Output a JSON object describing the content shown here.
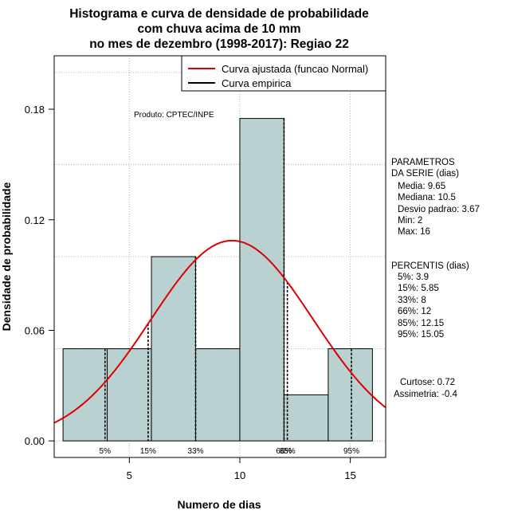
{
  "chart_data": {
    "type": "bar",
    "title_lines": [
      "Histograma e curva de densidade de probabilidade",
      "com chuva acima de 10 mm",
      "no mes de dezembro (1998-2017): Regiao 22"
    ],
    "xlabel": "Numero de dias",
    "ylabel": "Densidade de probabilidade",
    "xlim": [
      1.6,
      16.6
    ],
    "ylim": [
      -0.009,
      0.209
    ],
    "xticks": [
      5,
      10,
      15
    ],
    "yticks": [
      0.0,
      0.06,
      0.12,
      0.18
    ],
    "ytick_labels": [
      "0.00",
      "0.06",
      "0.12",
      "0.18"
    ],
    "bins": [
      {
        "x0": 2,
        "x1": 4,
        "density": 0.05
      },
      {
        "x0": 4,
        "x1": 6,
        "density": 0.05
      },
      {
        "x0": 6,
        "x1": 8,
        "density": 0.1
      },
      {
        "x0": 8,
        "x1": 10,
        "density": 0.05
      },
      {
        "x0": 10,
        "x1": 12,
        "density": 0.175
      },
      {
        "x0": 12,
        "x1": 14,
        "density": 0.025
      },
      {
        "x0": 14,
        "x1": 16,
        "density": 0.05
      }
    ],
    "normal_fit": {
      "mean": 9.65,
      "sd": 3.67
    },
    "percentile_lines": [
      {
        "label": "5%",
        "value": 3.9
      },
      {
        "label": "15%",
        "value": 5.85
      },
      {
        "label": "33%",
        "value": 8
      },
      {
        "label": "66%",
        "value": 12
      },
      {
        "label": "85%",
        "value": 12.15
      },
      {
        "label": "95%",
        "value": 15.05
      }
    ],
    "grid": true,
    "legend": {
      "position": "top-right",
      "entries": [
        {
          "label": "Curva ajustada (funcao Normal)",
          "color": "#dd0000"
        },
        {
          "label": "Curva empirica",
          "color": "#000000"
        }
      ]
    },
    "annotation": "Produto: CPTEC/INPE",
    "colors": {
      "bar_fill": "#b9d1d0",
      "curve": "#dd0000",
      "grid": "#b0b0b0"
    }
  },
  "side_panel": {
    "params_title": [
      "PARAMETROS",
      "DA SERIE (dias)"
    ],
    "params": [
      "Media: 9.65",
      "Mediana: 10.5",
      "Desvio padrao: 3.67",
      "Min: 2",
      "Max: 16"
    ],
    "percentis_title": "PERCENTIS (dias)",
    "percentis": [
      "5%: 3.9",
      "15%: 5.85",
      "33%: 8",
      "66%: 12",
      "85%: 12.15",
      "95%: 15.05"
    ],
    "shape": [
      "Curtose: 0.72",
      "Assimetria: -0.4"
    ]
  }
}
